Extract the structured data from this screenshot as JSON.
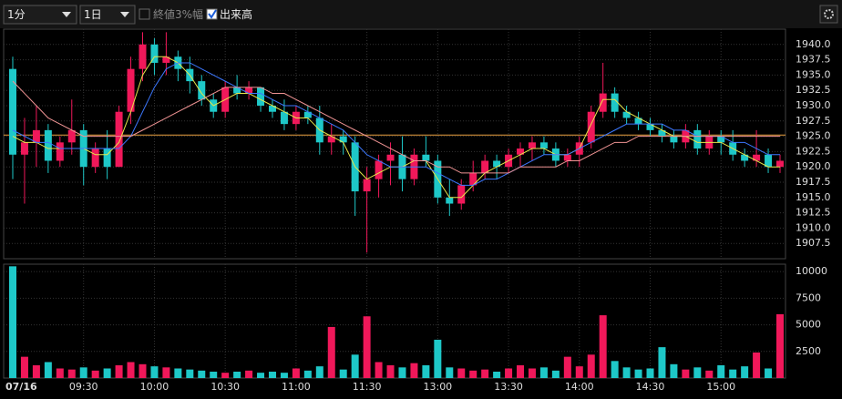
{
  "toolbar": {
    "interval": "1分",
    "range": "1日",
    "option_close_width": "終値3%幅",
    "option_volume": "出来高",
    "option_volume_checked": true
  },
  "chart_data": [
    {
      "type": "candlestick",
      "up_color": "#f0185a",
      "down_color": "#1ec8c8",
      "open": [
        1936,
        1922,
        1924,
        1926,
        1921,
        1924,
        1926,
        1920,
        1923,
        1920,
        1929,
        1936,
        1940,
        1937,
        1938,
        1936,
        1934,
        1931,
        1929,
        1933,
        1932,
        1933,
        1930,
        1929,
        1927,
        1929,
        1928,
        1924,
        1925,
        1924,
        1916,
        1918,
        1921,
        1922,
        1918,
        1922,
        1921,
        1915,
        1914,
        1917,
        1919,
        1921,
        1920,
        1922,
        1923,
        1924,
        1923,
        1921,
        1922,
        1924,
        1929,
        1932,
        1929,
        1928,
        1927,
        1926,
        1925,
        1924,
        1926,
        1923,
        1925,
        1924,
        1922,
        1921,
        1922,
        1920
      ],
      "high": [
        1938,
        1928,
        1930,
        1927,
        1925,
        1931,
        1927,
        1924,
        1926,
        1930,
        1938,
        1942,
        1941,
        1942,
        1939,
        1938,
        1935,
        1932,
        1934,
        1935,
        1934,
        1933,
        1931,
        1931,
        1930,
        1930,
        1930,
        1927,
        1926,
        1925,
        1920,
        1922,
        1924,
        1925,
        1923,
        1925,
        1922,
        1918,
        1918,
        1921,
        1922,
        1922,
        1923,
        1924,
        1925,
        1925,
        1924,
        1923,
        1925,
        1930,
        1937,
        1933,
        1930,
        1929,
        1928,
        1927,
        1926,
        1927,
        1927,
        1926,
        1926,
        1926,
        1923,
        1926,
        1923,
        1922
      ],
      "low": [
        1918,
        1914,
        1920,
        1919,
        1920,
        1922,
        1917,
        1919,
        1918,
        1920,
        1927,
        1934,
        1935,
        1935,
        1934,
        1932,
        1930,
        1928,
        1928,
        1931,
        1931,
        1929,
        1928,
        1926,
        1926,
        1927,
        1922,
        1922,
        1922,
        1912,
        1906,
        1915,
        1917,
        1916,
        1917,
        1920,
        1914,
        1912,
        1913,
        1916,
        1918,
        1918,
        1919,
        1920,
        1921,
        1922,
        1920,
        1920,
        1920,
        1923,
        1928,
        1928,
        1927,
        1926,
        1925,
        1924,
        1923,
        1923,
        1922,
        1922,
        1922,
        1921,
        1920,
        1920,
        1919,
        1919
      ],
      "close": [
        1922,
        1924,
        1926,
        1921,
        1924,
        1926,
        1920,
        1923,
        1920,
        1929,
        1936,
        1940,
        1937,
        1938,
        1936,
        1934,
        1931,
        1929,
        1933,
        1932,
        1933,
        1930,
        1929,
        1927,
        1929,
        1928,
        1924,
        1925,
        1924,
        1916,
        1918,
        1921,
        1922,
        1918,
        1922,
        1921,
        1915,
        1914,
        1917,
        1919,
        1921,
        1920,
        1922,
        1923,
        1924,
        1923,
        1921,
        1922,
        1924,
        1929,
        1932,
        1929,
        1928,
        1927,
        1926,
        1925,
        1924,
        1926,
        1923,
        1925,
        1924,
        1922,
        1921,
        1922,
        1920,
        1921
      ],
      "series": [
        {
          "color": "#e6e64a",
          "values": [
            1925,
            1924,
            1924,
            1923,
            1923,
            1923,
            1923,
            1922,
            1922,
            1924,
            1929,
            1935,
            1938,
            1938,
            1937,
            1935,
            1932,
            1930,
            1931,
            1932,
            1932,
            1931,
            1930,
            1929,
            1928,
            1928,
            1926,
            1925,
            1924,
            1920,
            1918,
            1919,
            1920,
            1920,
            1921,
            1921,
            1918,
            1915,
            1915,
            1917,
            1919,
            1920,
            1921,
            1922,
            1923,
            1923,
            1922,
            1922,
            1923,
            1927,
            1931,
            1931,
            1929,
            1928,
            1927,
            1926,
            1925,
            1925,
            1924,
            1924,
            1924,
            1923,
            1922,
            1921,
            1920,
            1920
          ]
        },
        {
          "color": "#3c78ff",
          "values": [
            1926,
            1925,
            1924,
            1924,
            1923,
            1923,
            1923,
            1923,
            1923,
            1923,
            1925,
            1929,
            1933,
            1936,
            1937,
            1937,
            1936,
            1935,
            1934,
            1933,
            1932,
            1932,
            1931,
            1930,
            1930,
            1929,
            1928,
            1927,
            1926,
            1924,
            1922,
            1921,
            1920,
            1920,
            1920,
            1920,
            1919,
            1918,
            1917,
            1917,
            1918,
            1918,
            1919,
            1920,
            1921,
            1922,
            1922,
            1922,
            1923,
            1924,
            1925,
            1926,
            1927,
            1927,
            1927,
            1927,
            1926,
            1926,
            1925,
            1925,
            1925,
            1924,
            1924,
            1923,
            1922,
            1922
          ]
        },
        {
          "color": "#f09494",
          "values": [
            1934,
            1932,
            1930,
            1928,
            1927,
            1926,
            1925,
            1925,
            1925,
            1925,
            1925,
            1926,
            1927,
            1928,
            1929,
            1930,
            1931,
            1932,
            1933,
            1933,
            1933,
            1933,
            1932,
            1932,
            1931,
            1930,
            1929,
            1928,
            1927,
            1926,
            1925,
            1924,
            1923,
            1922,
            1921,
            1921,
            1920,
            1920,
            1919,
            1919,
            1919,
            1919,
            1919,
            1920,
            1920,
            1920,
            1920,
            1921,
            1921,
            1922,
            1923,
            1924,
            1924,
            1925,
            1925,
            1925,
            1925,
            1925,
            1925,
            1925,
            1925,
            1925,
            1925,
            1925,
            1925,
            1925
          ]
        }
      ],
      "reference_line": 1925.2,
      "reference_color": "#e8a040",
      "ylim": [
        1905,
        1942.5
      ],
      "yticks": [
        {
          "value": 1940,
          "label": "1940.0"
        },
        1937.5,
        {
          "value": 1935,
          "label": "1935.0"
        },
        1932.5,
        {
          "value": 1930,
          "label": "1930.0"
        },
        1927.5,
        {
          "value": 1925,
          "label": "1925.0"
        },
        1922.5,
        {
          "value": 1920,
          "label": "1920.0"
        },
        1917.5,
        {
          "value": 1915,
          "label": "1915.0"
        },
        1912.5,
        {
          "value": 1910,
          "label": "1910.0"
        },
        1907.5
      ],
      "grid": true
    },
    {
      "type": "bar",
      "categories": [
        "07/16",
        null,
        null,
        null,
        null,
        null,
        "09:30",
        null,
        null,
        null,
        null,
        null,
        "10:00",
        null,
        null,
        null,
        null,
        null,
        "10:30",
        null,
        null,
        null,
        null,
        null,
        "11:00",
        null,
        null,
        null,
        null,
        null,
        "11:30",
        null,
        null,
        null,
        null,
        null,
        "13:00",
        null,
        null,
        null,
        null,
        null,
        "13:30",
        null,
        null,
        null,
        null,
        null,
        "14:00",
        null,
        null,
        null,
        null,
        null,
        "14:30",
        null,
        null,
        null,
        null,
        null,
        "15:00",
        null,
        null,
        null,
        null,
        null
      ],
      "values": [
        10500,
        2000,
        1200,
        1500,
        900,
        800,
        1000,
        700,
        900,
        1200,
        1500,
        1300,
        1100,
        1000,
        900,
        800,
        700,
        600,
        500,
        600,
        700,
        500,
        600,
        500,
        900,
        700,
        1100,
        4800,
        800,
        2200,
        5800,
        1500,
        1200,
        1000,
        1400,
        1200,
        3600,
        1000,
        900,
        700,
        800,
        600,
        900,
        1200,
        900,
        1000,
        700,
        2000,
        1100,
        2200,
        5900,
        1600,
        1000,
        800,
        900,
        2900,
        1300,
        800,
        1000,
        700,
        1200,
        800,
        1100,
        2400,
        900,
        6000
      ],
      "ylim": [
        0,
        10700
      ],
      "yticks": [
        2500,
        5000,
        7500,
        10000
      ],
      "grid": true
    }
  ]
}
